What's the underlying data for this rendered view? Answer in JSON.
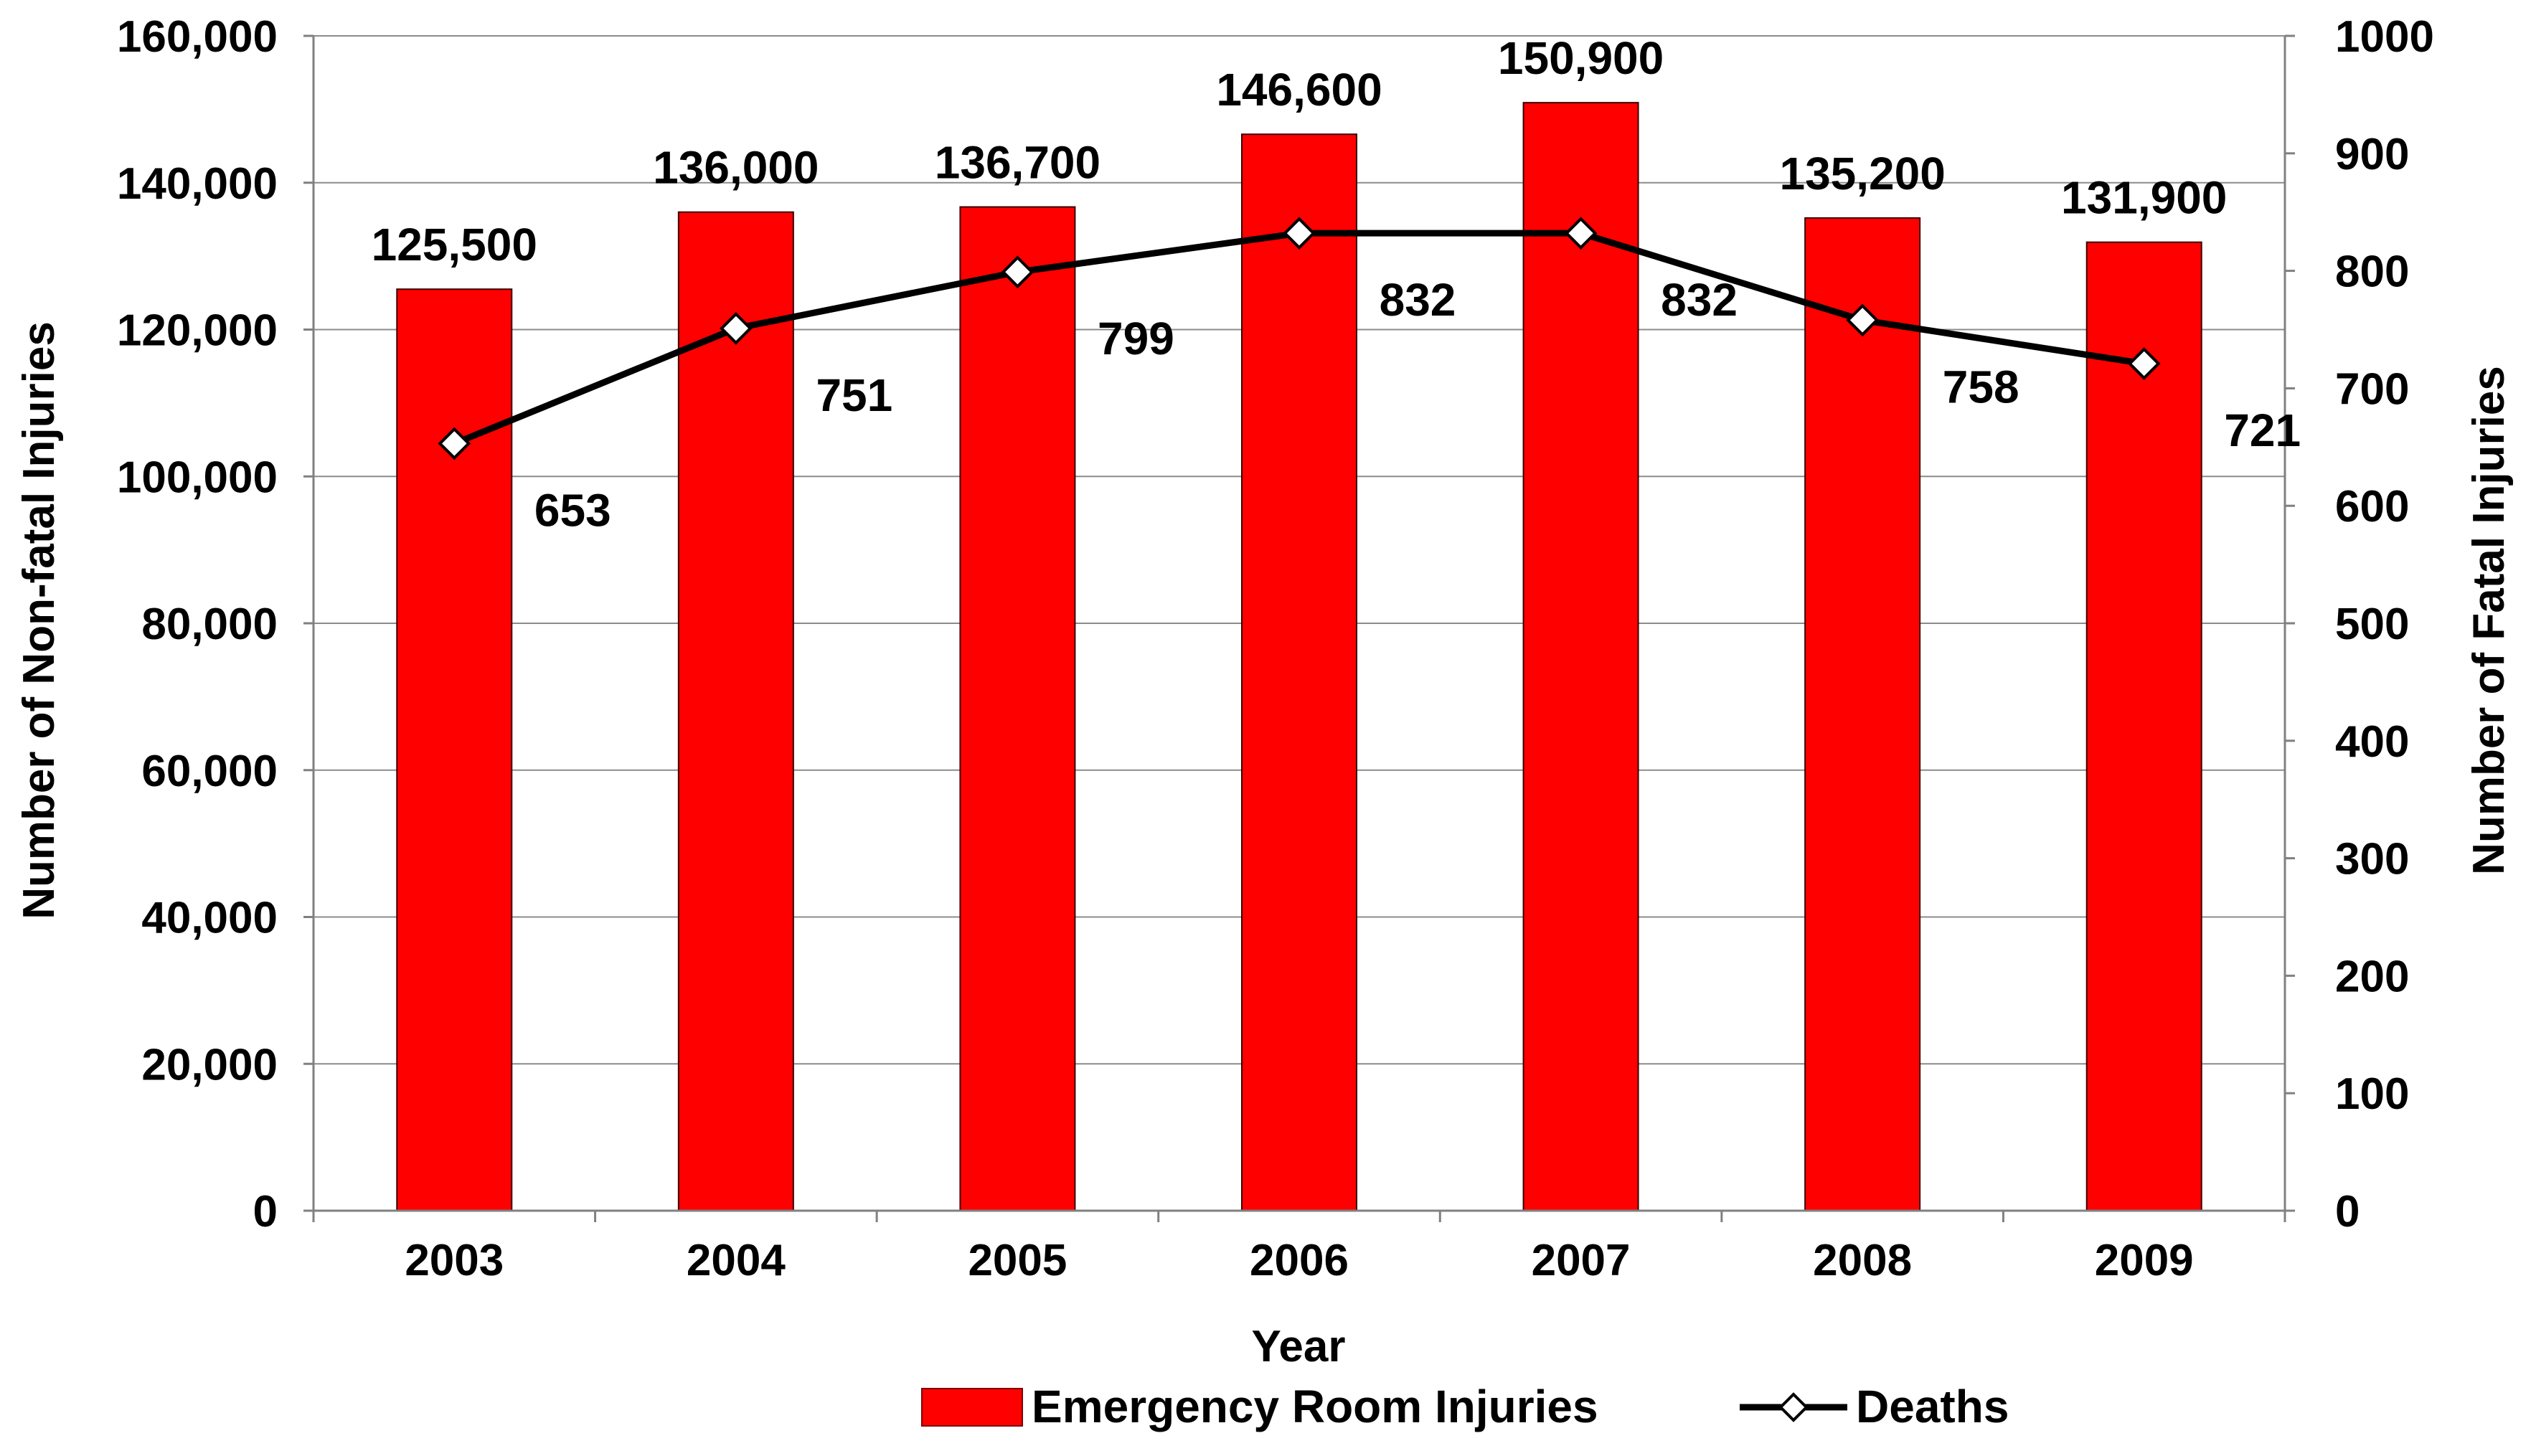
{
  "chart_data": {
    "type": "bar",
    "title": "",
    "categories": [
      "2003",
      "2004",
      "2005",
      "2006",
      "2007",
      "2008",
      "2009"
    ],
    "xlabel": "Year",
    "ylabel": "Number of Non-fatal Injuries",
    "y2label": "Number of Fatal Injuries",
    "ylim": [
      0,
      160000
    ],
    "y2lim": [
      0,
      1000
    ],
    "yticks": [
      "0",
      "20,000",
      "40,000",
      "60,000",
      "80,000",
      "100,000",
      "120,000",
      "140,000",
      "160,000"
    ],
    "y2ticks": [
      "0",
      "100",
      "200",
      "300",
      "400",
      "500",
      "600",
      "700",
      "800",
      "900",
      "1000"
    ],
    "grid": "horizontal",
    "legend_position": "bottom",
    "series": [
      {
        "name": "Emergency Room Injuries",
        "type": "bar",
        "axis": "left",
        "color": "#ff0000",
        "values": [
          125500,
          136000,
          136700,
          146600,
          150900,
          135200,
          131900
        ],
        "labels": [
          "125,500",
          "136,000",
          "136,700",
          "146,600",
          "150,900",
          "135,200",
          "131,900"
        ]
      },
      {
        "name": "Deaths",
        "type": "line",
        "axis": "right",
        "color": "#000000",
        "marker": "diamond",
        "values": [
          653,
          751,
          799,
          832,
          832,
          758,
          721
        ],
        "labels": [
          "653",
          "751",
          "799",
          "832",
          "832",
          "758",
          "721"
        ]
      }
    ]
  }
}
